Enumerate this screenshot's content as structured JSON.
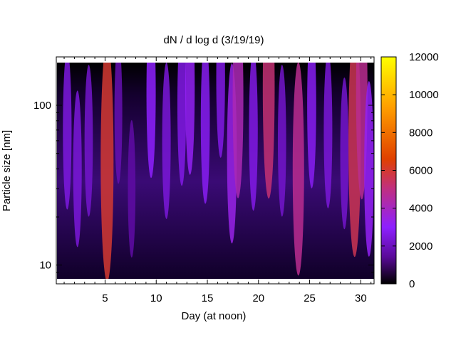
{
  "chart_data": {
    "type": "heatmap",
    "title": "dN / d log d (3/19/19)",
    "xlabel": "Day (at noon)",
    "ylabel": "Particle size [nm]",
    "x_range": [
      0.3,
      31.3
    ],
    "y_range": [
      8.2,
      185
    ],
    "y_scale": "log",
    "x_ticks": [
      5,
      10,
      15,
      20,
      25,
      30
    ],
    "y_ticks": [
      10,
      100
    ],
    "colorbar": {
      "min": 0,
      "max": 12000,
      "ticks": [
        0,
        2000,
        4000,
        6000,
        8000,
        10000,
        12000
      ],
      "colormap": [
        "#000000",
        "#5a0a9a",
        "#8e20ff",
        "#c02f80",
        "#e04000",
        "#ff9f00",
        "#ffff00"
      ]
    },
    "hotspots": [
      {
        "day": 1.3,
        "size_nm": 70,
        "value": 2500
      },
      {
        "day": 2.3,
        "size_nm": 40,
        "value": 2400
      },
      {
        "day": 3.4,
        "size_nm": 60,
        "value": 2200
      },
      {
        "day": 5.2,
        "size_nm": 45,
        "value": 6000
      },
      {
        "day": 6.3,
        "size_nm": 90,
        "value": 1800
      },
      {
        "day": 7.6,
        "size_nm": 30,
        "value": 1600
      },
      {
        "day": 9.5,
        "size_nm": 120,
        "value": 3000
      },
      {
        "day": 11.0,
        "size_nm": 60,
        "value": 2400
      },
      {
        "day": 12.5,
        "size_nm": 100,
        "value": 2600
      },
      {
        "day": 13.3,
        "size_nm": 130,
        "value": 3200
      },
      {
        "day": 14.8,
        "size_nm": 80,
        "value": 2800
      },
      {
        "day": 16.3,
        "size_nm": 150,
        "value": 2600
      },
      {
        "day": 17.4,
        "size_nm": 50,
        "value": 3400
      },
      {
        "day": 18.0,
        "size_nm": 110,
        "value": 4200
      },
      {
        "day": 19.5,
        "size_nm": 70,
        "value": 2600
      },
      {
        "day": 21.0,
        "size_nm": 130,
        "value": 5200
      },
      {
        "day": 22.3,
        "size_nm": 60,
        "value": 2200
      },
      {
        "day": 23.9,
        "size_nm": 40,
        "value": 4800
      },
      {
        "day": 25.2,
        "size_nm": 100,
        "value": 2800
      },
      {
        "day": 26.8,
        "size_nm": 70,
        "value": 2400
      },
      {
        "day": 28.4,
        "size_nm": 50,
        "value": 2200
      },
      {
        "day": 29.4,
        "size_nm": 60,
        "value": 5600
      },
      {
        "day": 30.1,
        "size_nm": 120,
        "value": 4800
      },
      {
        "day": 30.8,
        "size_nm": 40,
        "value": 3200
      }
    ]
  }
}
